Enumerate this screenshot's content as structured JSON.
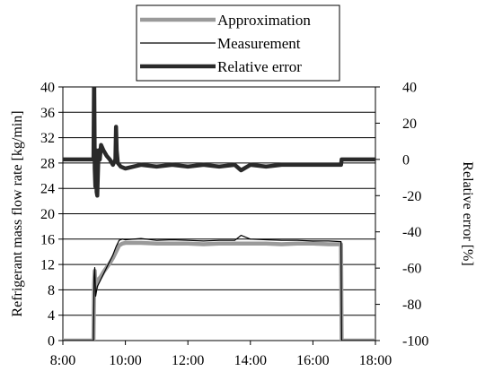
{
  "chart_data": {
    "type": "line",
    "title": "",
    "x_axis": {
      "label": "",
      "min": 8.0,
      "max": 18.0,
      "ticks": [
        "8:00",
        "10:00",
        "12:00",
        "14:00",
        "16:00",
        "18:00"
      ]
    },
    "y_axis_left": {
      "label": "Refrigerant mass flow rate [kg/min]",
      "min": 0,
      "max": 40,
      "ticks": [
        "0",
        "4",
        "8",
        "12",
        "16",
        "20",
        "24",
        "28",
        "32",
        "36",
        "40"
      ]
    },
    "y_axis_right": {
      "label": "Relative error [%]",
      "min": -100,
      "max": 40,
      "ticks": [
        "-100",
        "-80",
        "-60",
        "-40",
        "-20",
        "0",
        "20",
        "40"
      ]
    },
    "grid": "horizontal",
    "legend_position": "top-center",
    "series": [
      {
        "name": "Approximation",
        "axis": "left",
        "color": "#9a9a9a",
        "x": [
          8.0,
          8.98,
          9.0,
          9.02,
          9.05,
          9.1,
          9.2,
          9.3,
          9.4,
          9.5,
          9.6,
          9.7,
          9.8,
          9.9,
          10.0,
          10.5,
          11.0,
          11.5,
          12.0,
          12.5,
          13.0,
          13.5,
          14.0,
          14.5,
          15.0,
          15.5,
          16.0,
          16.5,
          16.9,
          16.92,
          18.0
        ],
        "y": [
          0,
          0,
          9.0,
          11.0,
          8.0,
          9.5,
          10.0,
          10.8,
          11.5,
          12.2,
          13.0,
          14.0,
          15.0,
          15.3,
          15.4,
          15.4,
          15.3,
          15.3,
          15.3,
          15.2,
          15.3,
          15.3,
          15.3,
          15.3,
          15.2,
          15.3,
          15.3,
          15.2,
          15.2,
          0,
          0
        ]
      },
      {
        "name": "Measurement",
        "axis": "left",
        "color": "#000000",
        "x": [
          8.0,
          8.98,
          9.0,
          9.02,
          9.05,
          9.1,
          9.2,
          9.3,
          9.4,
          9.5,
          9.6,
          9.7,
          9.8,
          9.9,
          10.0,
          10.5,
          11.0,
          11.5,
          12.0,
          12.5,
          13.0,
          13.5,
          13.7,
          14.0,
          14.5,
          15.0,
          15.5,
          16.0,
          16.5,
          16.9,
          16.92,
          18.0
        ],
        "y": [
          0,
          0,
          10.0,
          11.5,
          7.0,
          8.5,
          9.5,
          10.5,
          11.5,
          12.5,
          13.5,
          14.8,
          15.8,
          16.0,
          15.9,
          16.1,
          15.8,
          15.9,
          15.8,
          15.7,
          15.8,
          15.8,
          16.6,
          16.0,
          15.9,
          15.8,
          15.8,
          15.7,
          15.7,
          15.6,
          0,
          0
        ]
      },
      {
        "name": "Relative error",
        "axis": "right",
        "color": "#2a2a2a",
        "x": [
          8.0,
          8.98,
          9.0,
          9.02,
          9.04,
          9.06,
          9.08,
          9.1,
          9.14,
          9.18,
          9.22,
          9.3,
          9.4,
          9.5,
          9.6,
          9.68,
          9.7,
          9.72,
          9.76,
          9.85,
          10.0,
          10.5,
          11.0,
          11.5,
          12.0,
          12.5,
          13.0,
          13.5,
          13.7,
          14.0,
          14.5,
          15.0,
          15.5,
          16.0,
          16.5,
          16.9,
          16.92,
          18.0
        ],
        "y": [
          0,
          0,
          50,
          -5,
          -15,
          5,
          -18,
          -20,
          5,
          0,
          8,
          5,
          2,
          0,
          -3,
          0,
          18,
          5,
          -2,
          -4,
          -5,
          -3,
          -4,
          -3,
          -4,
          -3,
          -4,
          -3,
          -6,
          -3,
          -4,
          -3,
          -3,
          -3,
          -3,
          -3,
          0,
          0
        ]
      }
    ]
  }
}
